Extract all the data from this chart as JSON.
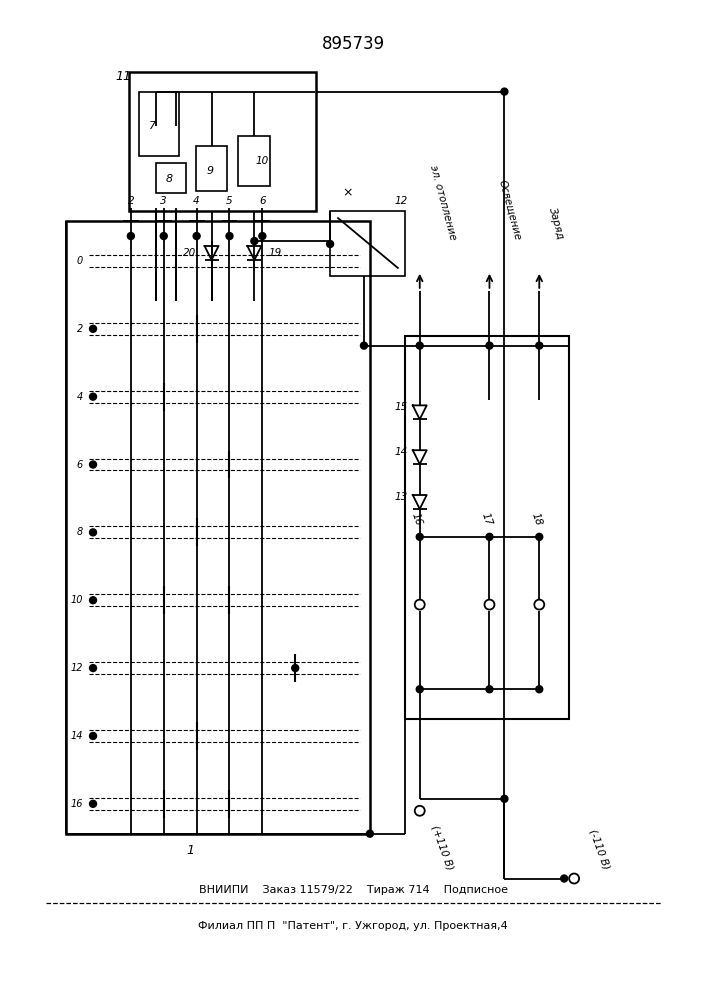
{
  "title": "895739",
  "bg_color": "#ffffff",
  "line_color": "#000000",
  "footer_line1": "ВНИИПИ    Заказ 11579/22    Тираж 714    Подписное",
  "footer_line2": "Филиал ПП П  \"Патент\", г. Ужгород, ул. Проектная,4",
  "label_minus110": "(-110 В)",
  "label_plus110": "(+110 В)",
  "label_el_otoplenie": "эл. отопление",
  "label_osveschenie": "Освещение",
  "label_zaryad": "Заряд"
}
